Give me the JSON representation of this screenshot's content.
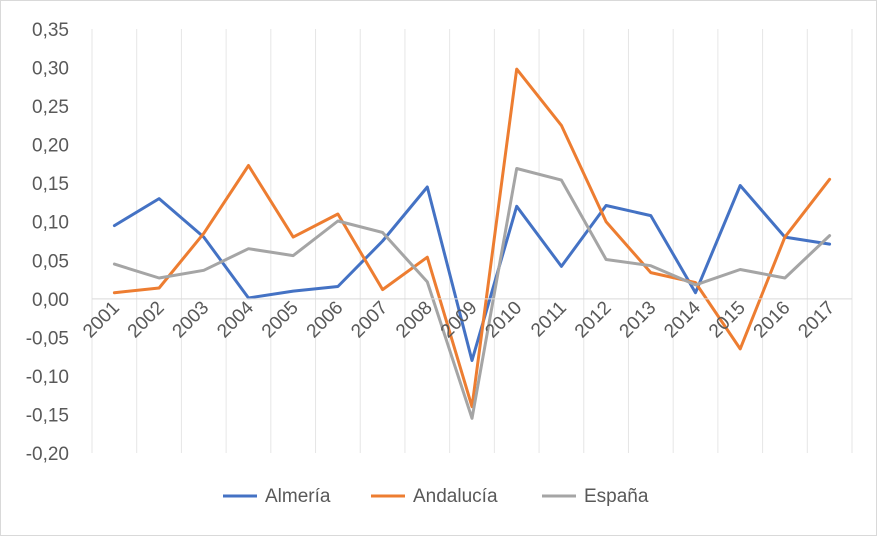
{
  "chart_data": {
    "type": "line",
    "title": "",
    "xlabel": "",
    "ylabel": "",
    "x": [
      "2001",
      "2002",
      "2003",
      "2004",
      "2005",
      "2006",
      "2007",
      "2008",
      "2009",
      "2010",
      "2011",
      "2012",
      "2013",
      "2014",
      "2015",
      "2016",
      "2017"
    ],
    "ylim": [
      -0.2,
      0.35
    ],
    "yticks": [
      "-0,20",
      "-0,15",
      "-0,10",
      "-0,05",
      "0,00",
      "0,05",
      "0,10",
      "0,15",
      "0,20",
      "0,25",
      "0,30",
      "0,35"
    ],
    "grid": "vertical",
    "legend": "bottom",
    "series": [
      {
        "name": "Almería",
        "color": "#4472c4",
        "values": [
          0.095,
          0.13,
          0.08,
          0.001,
          0.01,
          0.016,
          0.075,
          0.145,
          -0.08,
          0.12,
          0.042,
          0.121,
          0.108,
          0.008,
          0.147,
          0.08,
          0.071
        ]
      },
      {
        "name": "Andalucía",
        "color": "#ed7d31",
        "values": [
          0.008,
          0.014,
          0.085,
          0.173,
          0.08,
          0.11,
          0.012,
          0.054,
          -0.14,
          0.298,
          0.225,
          0.1,
          0.034,
          0.021,
          -0.065,
          0.08,
          0.155
        ]
      },
      {
        "name": "España",
        "color": "#a5a5a5",
        "values": [
          0.045,
          0.027,
          0.037,
          0.065,
          0.056,
          0.101,
          0.086,
          0.022,
          -0.155,
          0.169,
          0.154,
          0.051,
          0.043,
          0.018,
          0.038,
          0.027,
          0.082
        ]
      }
    ]
  }
}
